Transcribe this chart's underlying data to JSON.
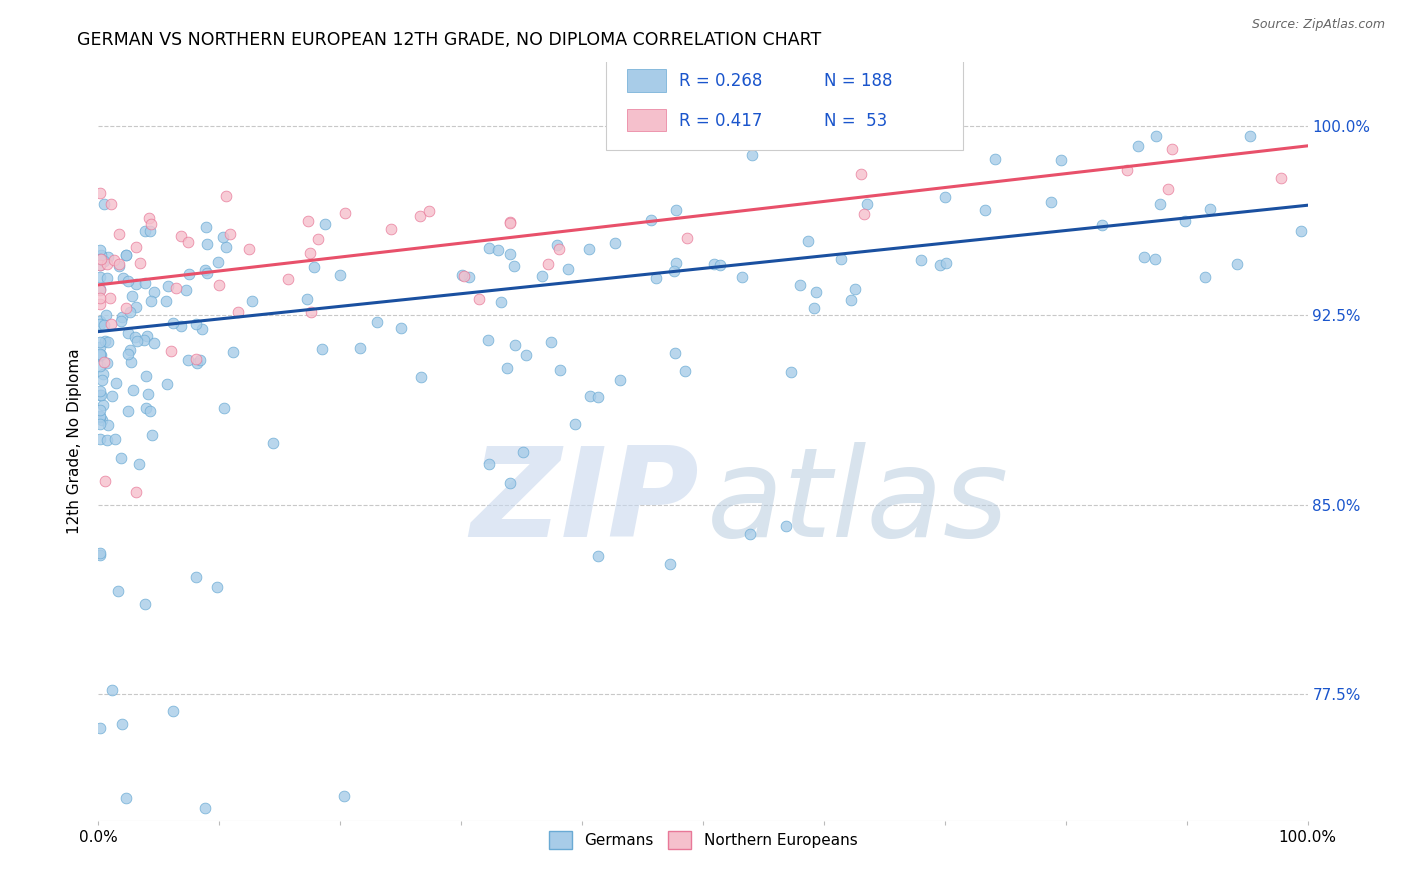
{
  "title": "GERMAN VS NORTHERN EUROPEAN 12TH GRADE, NO DIPLOMA CORRELATION CHART",
  "source": "Source: ZipAtlas.com",
  "ylabel": "12th Grade, No Diploma",
  "ytick_labels": [
    "77.5%",
    "85.0%",
    "92.5%",
    "100.0%"
  ],
  "ytick_values": [
    0.775,
    0.85,
    0.925,
    1.0
  ],
  "xlim": [
    0.0,
    1.0
  ],
  "ylim": [
    0.725,
    1.025
  ],
  "german_color": "#a8cce8",
  "german_edge_color": "#6aaad4",
  "northern_color": "#f5c0cc",
  "northern_edge_color": "#e87898",
  "german_line_color": "#1a50a0",
  "northern_line_color": "#e8506a",
  "label_color": "#1a55cc",
  "R_german": 0.268,
  "N_german": 188,
  "R_northern": 0.417,
  "N_northern": 53,
  "german_line_y0": 0.9185,
  "german_line_y1": 0.9685,
  "northern_line_y0": 0.937,
  "northern_line_y1": 0.992,
  "watermark_zip_color": "#c8d8ee",
  "watermark_atlas_color": "#b8ccdf",
  "title_fontsize": 12.5,
  "source_fontsize": 9
}
